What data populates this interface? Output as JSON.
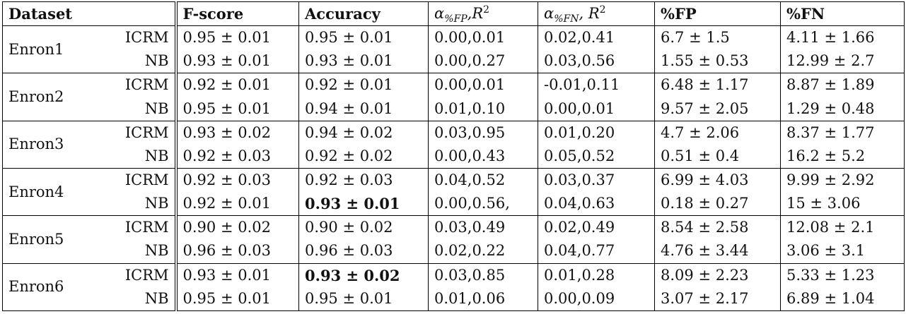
{
  "table": {
    "header": {
      "dataset": "Dataset",
      "fscore": "F-score",
      "accuracy": "Accuracy",
      "alpha_fp": {
        "sym": "α",
        "sub": "%FP",
        "rest": ",R",
        "sup": "2"
      },
      "alpha_fn": {
        "sym": "α",
        "sub": "%FN",
        "rest": ", R",
        "sup": "2"
      },
      "fp": "%FP",
      "fn": "%FN"
    },
    "groups": [
      {
        "dataset": "Enron1",
        "rows": [
          {
            "method": "ICRM",
            "fscore": "0.95 ± 0.01",
            "accuracy": "0.95 ± 0.01",
            "alpha_fp": "0.00,0.01",
            "alpha_fn": "0.02,0.41",
            "fp": "6.7 ± 1.5",
            "fn": "4.11 ± 1.66"
          },
          {
            "method": "NB",
            "fscore": "0.93 ± 0.01",
            "accuracy": "0.93 ± 0.01",
            "alpha_fp": "0.00,0.27",
            "alpha_fn": "0.03,0.56",
            "fp": "1.55 ± 0.53",
            "fn": "12.99 ± 2.7"
          }
        ]
      },
      {
        "dataset": "Enron2",
        "rows": [
          {
            "method": "ICRM",
            "fscore": "0.92 ± 0.01",
            "accuracy": "0.92 ± 0.01",
            "alpha_fp": "0.00,0.01",
            "alpha_fn": "-0.01,0.11",
            "fp": "6.48 ± 1.17",
            "fn": "8.87 ± 1.89"
          },
          {
            "method": "NB",
            "fscore": "0.95 ± 0.01",
            "accuracy": "0.94 ± 0.01",
            "alpha_fp": "0.01,0.10",
            "alpha_fn": "0.00,0.01",
            "fp": "9.57 ± 2.05",
            "fn": "1.29 ± 0.48"
          }
        ]
      },
      {
        "dataset": "Enron3",
        "rows": [
          {
            "method": "ICRM",
            "fscore": "0.93 ± 0.02",
            "accuracy": "0.94 ± 0.02",
            "alpha_fp": "0.03,0.95",
            "alpha_fn": "0.01,0.20",
            "fp": "4.7 ± 2.06",
            "fn": "8.37 ± 1.77"
          },
          {
            "method": "NB",
            "fscore": "0.92 ± 0.03",
            "accuracy": "0.92 ± 0.02",
            "alpha_fp": "0.00,0.43",
            "alpha_fn": "0.05,0.52",
            "fp": "0.51 ± 0.4",
            "fn": "16.2 ± 5.2"
          }
        ]
      },
      {
        "dataset": "Enron4",
        "rows": [
          {
            "method": "ICRM",
            "fscore": "0.92 ± 0.03",
            "accuracy": "0.92 ± 0.03",
            "alpha_fp": "0.04,0.52",
            "alpha_fn": "0.03,0.37",
            "fp": "6.99 ± 4.03",
            "fn": "9.99 ± 2.92"
          },
          {
            "method": "NB",
            "fscore": "0.92 ± 0.01",
            "accuracy": "0.93 ± 0.01",
            "accuracy_bold": true,
            "alpha_fp": "0.00,0.56,",
            "alpha_fn": "0.04,0.63",
            "fp": "0.18 ± 0.27",
            "fn": "15 ± 3.06"
          }
        ]
      },
      {
        "dataset": "Enron5",
        "rows": [
          {
            "method": "ICRM",
            "fscore": "0.90 ± 0.02",
            "accuracy": "0.90 ± 0.02",
            "alpha_fp": "0.03,0.49",
            "alpha_fn": "0.02,0.49",
            "fp": "8.54 ± 2.58",
            "fn": "12.08 ± 2.1"
          },
          {
            "method": "NB",
            "fscore": "0.96 ± 0.03",
            "accuracy": "0.96 ± 0.03",
            "alpha_fp": "0.02,0.22",
            "alpha_fn": "0.04,0.77",
            "fp": "4.76 ± 3.44",
            "fn": "3.06 ± 3.1"
          }
        ]
      },
      {
        "dataset": "Enron6",
        "rows": [
          {
            "method": "ICRM",
            "fscore": "0.93 ± 0.01",
            "accuracy": "0.93 ± 0.02",
            "accuracy_bold": true,
            "alpha_fp": "0.03,0.85",
            "alpha_fn": "0.01,0.28",
            "fp": "8.09 ± 2.23",
            "fn": "5.33 ± 1.23"
          },
          {
            "method": "NB",
            "fscore": "0.95 ± 0.01",
            "accuracy": "0.95 ± 0.01",
            "alpha_fp": "0.01,0.06",
            "alpha_fn": "0.00,0.09",
            "fp": "3.07 ± 2.17",
            "fn": "6.89 ± 1.04"
          }
        ]
      }
    ]
  }
}
